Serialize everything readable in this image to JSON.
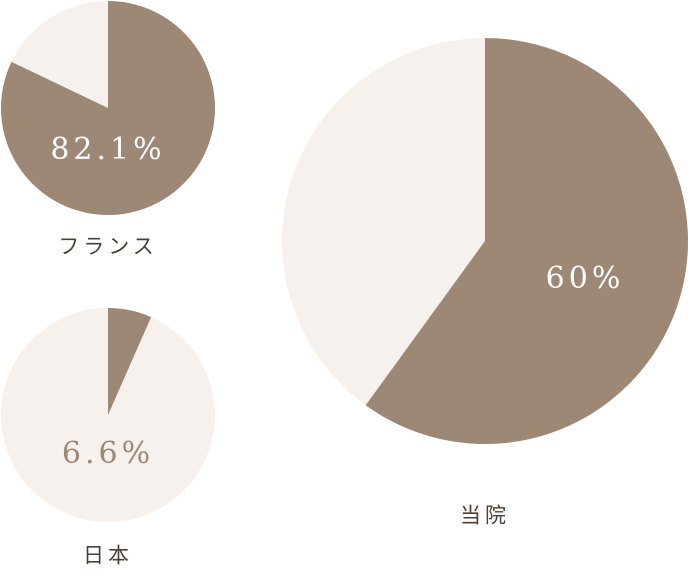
{
  "chart_data": [
    {
      "type": "pie",
      "title": "フランス",
      "values": [
        82.1
      ],
      "value_labels": [
        "82.1%"
      ],
      "color": "#9d8876",
      "rest_color": "#f6f1ec",
      "label_color": "#ffffff"
    },
    {
      "type": "pie",
      "title": "日本",
      "values": [
        6.6
      ],
      "value_labels": [
        "6.6%"
      ],
      "color": "#9d8876",
      "rest_color": "#f6f1ec",
      "label_color": "#9d8876"
    },
    {
      "type": "pie",
      "title": "当院",
      "values": [
        60
      ],
      "value_labels": [
        "60%"
      ],
      "color": "#9d8876",
      "rest_color": "#f6f1ec",
      "label_color": "#ffffff"
    }
  ]
}
